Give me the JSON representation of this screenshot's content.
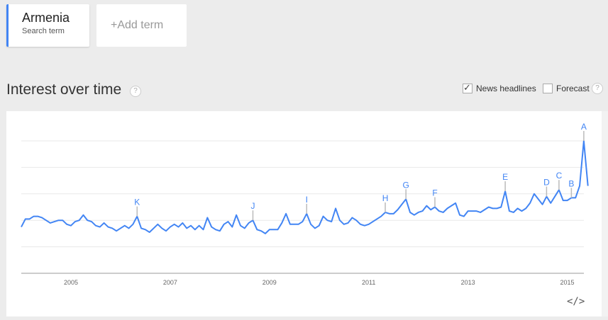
{
  "term": {
    "name": "Armenia",
    "sub": "Search term"
  },
  "add_term": "+Add term",
  "section_title": "Interest over time",
  "help": "?",
  "options": {
    "news_headlines": {
      "label": "News headlines",
      "checked": true
    },
    "forecast": {
      "label": "Forecast",
      "checked": false
    }
  },
  "embed_label": "</>",
  "colors": {
    "line": "#4285f4",
    "accent": "#4285f4"
  },
  "chart_data": {
    "type": "line",
    "x_start": "2004-01",
    "x_interval": "month",
    "ylim": [
      0,
      100
    ],
    "grid": true,
    "xticks": [
      "2005",
      "2007",
      "2009",
      "2011",
      "2013",
      "2015"
    ],
    "values": [
      35,
      41,
      41,
      43,
      43,
      42,
      40,
      38,
      39,
      40,
      40,
      37,
      36,
      39,
      40,
      44,
      40,
      39,
      36,
      35,
      38,
      35,
      34,
      32,
      34,
      36,
      34,
      37,
      43,
      34,
      33,
      31,
      34,
      37,
      34,
      32,
      35,
      37,
      35,
      38,
      34,
      36,
      33,
      36,
      33,
      42,
      35,
      33,
      32,
      37,
      39,
      35,
      44,
      36,
      34,
      38,
      40,
      33,
      32,
      30,
      33,
      33,
      33,
      38,
      45,
      37,
      37,
      37,
      39,
      45,
      37,
      34,
      36,
      43,
      40,
      39,
      49,
      40,
      37,
      38,
      42,
      40,
      37,
      36,
      37,
      39,
      41,
      43,
      46,
      45,
      45,
      48,
      52,
      56,
      46,
      44,
      46,
      47,
      51,
      48,
      50,
      47,
      46,
      49,
      51,
      53,
      44,
      43,
      47,
      47,
      47,
      46,
      48,
      50,
      49,
      49,
      50,
      62,
      47,
      46,
      49,
      47,
      49,
      53,
      60,
      56,
      52,
      58,
      53,
      58,
      63,
      55,
      55,
      57,
      57,
      66,
      100,
      66
    ],
    "annotations": [
      {
        "letter": "K",
        "date": "2006-05"
      },
      {
        "letter": "J",
        "date": "2008-09"
      },
      {
        "letter": "I",
        "date": "2009-10"
      },
      {
        "letter": "H",
        "date": "2011-05"
      },
      {
        "letter": "G",
        "date": "2011-10"
      },
      {
        "letter": "F",
        "date": "2012-05"
      },
      {
        "letter": "E",
        "date": "2013-10"
      },
      {
        "letter": "D",
        "date": "2014-08"
      },
      {
        "letter": "C",
        "date": "2014-11"
      },
      {
        "letter": "B",
        "date": "2015-02"
      },
      {
        "letter": "A",
        "date": "2015-05"
      }
    ]
  }
}
